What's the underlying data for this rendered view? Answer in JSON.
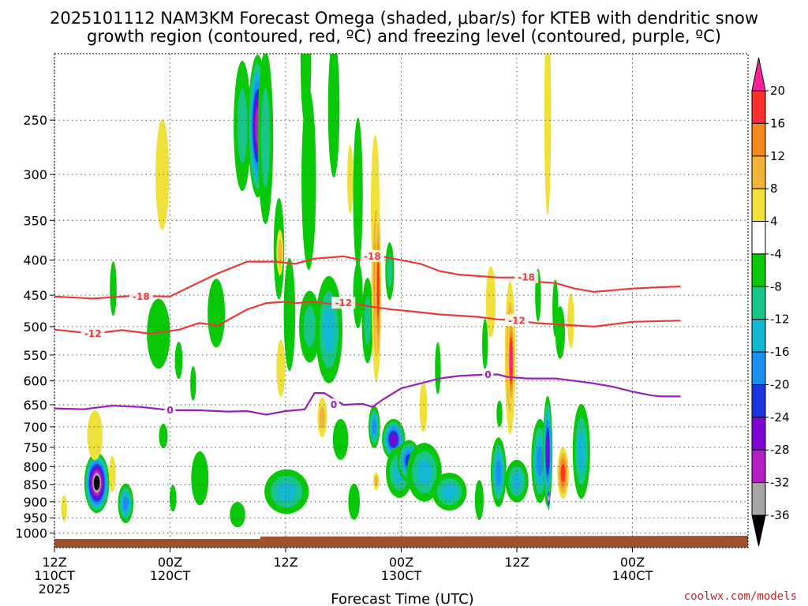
{
  "chart_data": {
    "type": "heatmap",
    "title": "2025101112 NAM3KM Forecast Omega (shaded, μbar/s) for KTEB with dendritic snow",
    "subtitle": "growth region (contoured, red, ºC) and freezing level (contoured, purple, ºC)",
    "xlabel": "Forecast Time (UTC)",
    "ylabel": "",
    "credit": "coolwx.com/models",
    "x_range_hours": [
      0,
      72
    ],
    "y_range_mb": [
      1050,
      200
    ],
    "y_scale": "log-pressure",
    "grid": true,
    "x_ticks": [
      {
        "hour": 0,
        "line1": "12Z",
        "line2": "110CT",
        "line3": "2025"
      },
      {
        "hour": 12,
        "line1": "00Z",
        "line2": "120CT",
        "line3": ""
      },
      {
        "hour": 24,
        "line1": "12Z",
        "line2": "",
        "line3": ""
      },
      {
        "hour": 36,
        "line1": "00Z",
        "line2": "130CT",
        "line3": ""
      },
      {
        "hour": 48,
        "line1": "12Z",
        "line2": "",
        "line3": ""
      },
      {
        "hour": 60,
        "line1": "00Z",
        "line2": "140CT",
        "line3": ""
      }
    ],
    "y_ticks": [
      250,
      300,
      350,
      400,
      450,
      500,
      550,
      600,
      650,
      700,
      750,
      800,
      850,
      900,
      950,
      1000
    ],
    "colorbar": {
      "labels": [
        "20",
        "16",
        "12",
        "8",
        "4",
        "-4",
        "-8",
        "-12",
        "-16",
        "-20",
        "-24",
        "-28",
        "-32",
        "-36"
      ],
      "colors": [
        "#ff1f9a",
        "#ff2e2e",
        "#f5891e",
        "#f2b33b",
        "#f0e03a",
        "#ffffff",
        "#08c808",
        "#19c58a",
        "#12b8d2",
        "#1c8ff2",
        "#1c33e0",
        "#7e06d4",
        "#b01ec4",
        "#a6a6a6",
        "#000000"
      ]
    },
    "contours": [
      {
        "label": "-18",
        "color": "#e83a3a",
        "points": [
          [
            0,
            452
          ],
          [
            4,
            455
          ],
          [
            8,
            451
          ],
          [
            12,
            452
          ],
          [
            14,
            438
          ],
          [
            17,
            418
          ],
          [
            20,
            402
          ],
          [
            23,
            402
          ],
          [
            25,
            405
          ],
          [
            27,
            398
          ],
          [
            30,
            395
          ],
          [
            32,
            400
          ],
          [
            34,
            395
          ],
          [
            36,
            400
          ],
          [
            38,
            405
          ],
          [
            40,
            415
          ],
          [
            42,
            420
          ],
          [
            44,
            422
          ],
          [
            46,
            424
          ],
          [
            48,
            424
          ],
          [
            50,
            430
          ],
          [
            52,
            432
          ],
          [
            54,
            440
          ],
          [
            56,
            445
          ],
          [
            60,
            440
          ],
          [
            63,
            438
          ],
          [
            65,
            437
          ]
        ],
        "label_at": [
          [
            9,
            452
          ],
          [
            33,
            395
          ],
          [
            49,
            424
          ]
        ]
      },
      {
        "label": "-12",
        "color": "#e83a3a",
        "points": [
          [
            0,
            505
          ],
          [
            4,
            512
          ],
          [
            7,
            506
          ],
          [
            10,
            512
          ],
          [
            13,
            505
          ],
          [
            15,
            494
          ],
          [
            17,
            498
          ],
          [
            20,
            472
          ],
          [
            22,
            462
          ],
          [
            24,
            460
          ],
          [
            25,
            462
          ],
          [
            27,
            460
          ],
          [
            29,
            464
          ],
          [
            31,
            462
          ],
          [
            33,
            468
          ],
          [
            35,
            472
          ],
          [
            37,
            475
          ],
          [
            40,
            480
          ],
          [
            44,
            484
          ],
          [
            46,
            488
          ],
          [
            48,
            490
          ],
          [
            50,
            494
          ],
          [
            52,
            496
          ],
          [
            56,
            500
          ],
          [
            60,
            492
          ],
          [
            65,
            490
          ]
        ],
        "label_at": [
          [
            4,
            512
          ],
          [
            30,
            462
          ],
          [
            48,
            490
          ]
        ]
      },
      {
        "label": "0",
        "color": "#9a1fb8",
        "points": [
          [
            0,
            658
          ],
          [
            3,
            660
          ],
          [
            6,
            652
          ],
          [
            9,
            655
          ],
          [
            12,
            662
          ],
          [
            15,
            662
          ],
          [
            18,
            665
          ],
          [
            20,
            664
          ],
          [
            22,
            672
          ],
          [
            24,
            664
          ],
          [
            26,
            660
          ],
          [
            27,
            625
          ],
          [
            28,
            625
          ],
          [
            30,
            650
          ],
          [
            32,
            648
          ],
          [
            33,
            655
          ],
          [
            34,
            640
          ],
          [
            36,
            615
          ],
          [
            38,
            605
          ],
          [
            40,
            595
          ],
          [
            42,
            590
          ],
          [
            44,
            588
          ],
          [
            46,
            587
          ],
          [
            47,
            592
          ],
          [
            49,
            595
          ],
          [
            50,
            595
          ],
          [
            52,
            595
          ],
          [
            54,
            600
          ],
          [
            56,
            605
          ],
          [
            58,
            612
          ],
          [
            60,
            622
          ],
          [
            62,
            630
          ],
          [
            63,
            632
          ],
          [
            65,
            632
          ]
        ],
        "label_at": [
          [
            12,
            662
          ],
          [
            29,
            650
          ],
          [
            45,
            588
          ]
        ]
      }
    ],
    "blobs": [
      {
        "t": 4.4,
        "p": 845,
        "rt": 1.3,
        "rp": 85,
        "v": -36
      },
      {
        "t": 4.2,
        "p": 720,
        "rt": 0.8,
        "rp": 60,
        "v": 6
      },
      {
        "t": 6.1,
        "p": 440,
        "rt": 0.35,
        "rp": 40,
        "v": -6
      },
      {
        "t": 7.4,
        "p": 905,
        "rt": 0.8,
        "rp": 60,
        "v": -16
      },
      {
        "t": 6.0,
        "p": 820,
        "rt": 0.35,
        "rp": 50,
        "v": 6
      },
      {
        "t": 1.0,
        "p": 920,
        "rt": 0.3,
        "rp": 40,
        "v": 5
      },
      {
        "t": 11.2,
        "p": 300,
        "rt": 0.7,
        "rp": 55,
        "v": 6
      },
      {
        "t": 10.8,
        "p": 512,
        "rt": 1.2,
        "rp": 60,
        "v": -6
      },
      {
        "t": 11.3,
        "p": 722,
        "rt": 0.45,
        "rp": 30,
        "v": -6
      },
      {
        "t": 12.3,
        "p": 890,
        "rt": 0.35,
        "rp": 40,
        "v": -6
      },
      {
        "t": 12.9,
        "p": 560,
        "rt": 0.4,
        "rp": 35,
        "v": -6
      },
      {
        "t": 14.4,
        "p": 605,
        "rt": 0.3,
        "rp": 35,
        "v": -6
      },
      {
        "t": 15.1,
        "p": 832,
        "rt": 0.9,
        "rp": 75,
        "v": -6
      },
      {
        "t": 16.8,
        "p": 478,
        "rt": 0.9,
        "rp": 55,
        "v": -6
      },
      {
        "t": 19.0,
        "p": 940,
        "rt": 0.8,
        "rp": 40,
        "v": -6
      },
      {
        "t": 19.5,
        "p": 255,
        "rt": 0.9,
        "rp": 55,
        "v": -10
      },
      {
        "t": 21.1,
        "p": 255,
        "rt": 1.0,
        "rp": 60,
        "v": -30
      },
      {
        "t": 21.9,
        "p": 265,
        "rt": 0.8,
        "rp": 75,
        "v": -8
      },
      {
        "t": 23.3,
        "p": 385,
        "rt": 0.55,
        "rp": 65,
        "v": -6
      },
      {
        "t": 23.4,
        "p": 390,
        "rt": 0.35,
        "rp": 30,
        "v": 10
      },
      {
        "t": 23.5,
        "p": 575,
        "rt": 0.45,
        "rp": 55,
        "v": 6
      },
      {
        "t": 24.1,
        "p": 870,
        "rt": 2.3,
        "rp": 65,
        "v": -14
      },
      {
        "t": 24.4,
        "p": 480,
        "rt": 0.6,
        "rp": 90,
        "v": -6
      },
      {
        "t": 26.5,
        "p": 500,
        "rt": 1.1,
        "rp": 60,
        "v": -10
      },
      {
        "t": 26.1,
        "p": 205,
        "rt": 0.55,
        "rp": 45,
        "v": -6
      },
      {
        "t": 26.4,
        "p": 305,
        "rt": 0.75,
        "rp": 90,
        "v": -6
      },
      {
        "t": 27.8,
        "p": 678,
        "rt": 0.5,
        "rp": 45,
        "v": 8
      },
      {
        "t": 28.5,
        "p": 505,
        "rt": 1.4,
        "rp": 90,
        "v": -12
      },
      {
        "t": 29.0,
        "p": 240,
        "rt": 0.6,
        "rp": 55,
        "v": -6
      },
      {
        "t": 29.7,
        "p": 730,
        "rt": 0.8,
        "rp": 50,
        "v": -6
      },
      {
        "t": 30.7,
        "p": 305,
        "rt": 0.3,
        "rp": 35,
        "v": 5
      },
      {
        "t": 31.1,
        "p": 900,
        "rt": 0.6,
        "rp": 55,
        "v": -6
      },
      {
        "t": 31.5,
        "p": 450,
        "rt": 0.5,
        "rp": 50,
        "v": -6
      },
      {
        "t": 31.5,
        "p": 320,
        "rt": 0.5,
        "rp": 80,
        "v": -6
      },
      {
        "t": 32.5,
        "p": 490,
        "rt": 0.6,
        "rp": 70,
        "v": -8
      },
      {
        "t": 33.2,
        "p": 700,
        "rt": 0.6,
        "rp": 50,
        "v": -16
      },
      {
        "t": 33.3,
        "p": 335,
        "rt": 0.45,
        "rp": 80,
        "v": 5
      },
      {
        "t": 33.4,
        "p": 430,
        "rt": 0.5,
        "rp": 140,
        "v": 12
      },
      {
        "t": 33.6,
        "p": 440,
        "rt": 0.3,
        "rp": 120,
        "v": 16
      },
      {
        "t": 33.4,
        "p": 840,
        "rt": 0.3,
        "rp": 25,
        "v": 10
      },
      {
        "t": 34.8,
        "p": 415,
        "rt": 0.45,
        "rp": 40,
        "v": -8
      },
      {
        "t": 35.2,
        "p": 730,
        "rt": 1.2,
        "rp": 50,
        "v": -24
      },
      {
        "t": 35.8,
        "p": 815,
        "rt": 1.4,
        "rp": 70,
        "v": -12
      },
      {
        "t": 36.8,
        "p": 785,
        "rt": 1.2,
        "rp": 55,
        "v": -22
      },
      {
        "t": 38.4,
        "p": 815,
        "rt": 1.8,
        "rp": 80,
        "v": -14
      },
      {
        "t": 38.3,
        "p": 655,
        "rt": 0.4,
        "rp": 55,
        "v": 7
      },
      {
        "t": 39.8,
        "p": 575,
        "rt": 0.3,
        "rp": 50,
        "v": -6
      },
      {
        "t": 41.0,
        "p": 870,
        "rt": 1.8,
        "rp": 55,
        "v": -14
      },
      {
        "t": 45.3,
        "p": 460,
        "rt": 0.5,
        "rp": 55,
        "v": 7
      },
      {
        "t": 44.1,
        "p": 895,
        "rt": 0.45,
        "rp": 60,
        "v": -6
      },
      {
        "t": 44.7,
        "p": 530,
        "rt": 0.3,
        "rp": 45,
        "v": -6
      },
      {
        "t": 46.1,
        "p": 815,
        "rt": 0.8,
        "rp": 95,
        "v": -16
      },
      {
        "t": 46.2,
        "p": 670,
        "rt": 0.3,
        "rp": 30,
        "v": -6
      },
      {
        "t": 47.3,
        "p": 555,
        "rt": 0.55,
        "rp": 140,
        "v": 14
      },
      {
        "t": 47.4,
        "p": 560,
        "rt": 0.35,
        "rp": 90,
        "v": 20
      },
      {
        "t": 48.0,
        "p": 840,
        "rt": 1.2,
        "rp": 60,
        "v": -14
      },
      {
        "t": 50.2,
        "p": 450,
        "rt": 0.3,
        "rp": 40,
        "v": -6
      },
      {
        "t": 51.2,
        "p": 245,
        "rt": 0.35,
        "rp": 80,
        "v": 5
      },
      {
        "t": 50.4,
        "p": 785,
        "rt": 0.9,
        "rp": 110,
        "v": -18
      },
      {
        "t": 51.2,
        "p": 760,
        "rt": 0.5,
        "rp": 140,
        "v": -24
      },
      {
        "t": 52.8,
        "p": 818,
        "rt": 0.6,
        "rp": 70,
        "v": 16
      },
      {
        "t": 52.5,
        "p": 510,
        "rt": 0.5,
        "rp": 45,
        "v": -6
      },
      {
        "t": 53.6,
        "p": 490,
        "rt": 0.35,
        "rp": 45,
        "v": 5
      },
      {
        "t": 54.7,
        "p": 760,
        "rt": 0.9,
        "rp": 120,
        "v": -12
      },
      {
        "t": 51.3,
        "p": 890,
        "rt": 0.15,
        "rp": 35,
        "v": -34
      },
      {
        "t": 52.0,
        "p": 470,
        "rt": 0.3,
        "rp": 45,
        "v": -6
      }
    ]
  }
}
